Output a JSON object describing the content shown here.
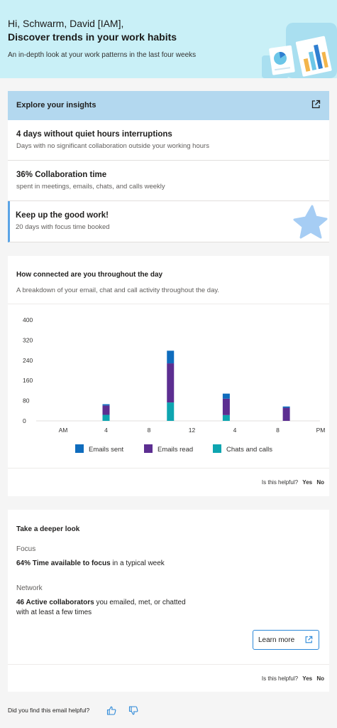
{
  "hero": {
    "greeting": "Hi, Schwarm, David [IAM],",
    "headline": "Discover trends in your work habits",
    "subtitle": "An in-depth look at your work patterns in the last four weeks"
  },
  "insights": {
    "header": "Explore your insights",
    "items": [
      {
        "title": "4 days without quiet hours interruptions",
        "detail": "Days with no significant collaboration outside your working hours"
      },
      {
        "title": "36% Collaboration time",
        "detail": "spent in meetings, emails, chats, and calls weekly"
      },
      {
        "title": "Keep up the good work!",
        "detail": "20 days with focus time booked"
      }
    ]
  },
  "connected": {
    "title": "How connected are you throughout the day",
    "description": "A breakdown of your email, chat and call activity throughout the day.",
    "helpful_question": "Is this helpful?",
    "yes": "Yes",
    "no": "No"
  },
  "chart_data": {
    "type": "bar",
    "stacked": true,
    "categories": [
      "AM",
      "4",
      "8",
      "12",
      "4",
      "8",
      "PM"
    ],
    "tick_labels": [
      "AM",
      "4",
      "8",
      "12",
      "4",
      "8",
      "PM"
    ],
    "y_ticks": [
      0,
      80,
      160,
      240,
      320,
      400
    ],
    "ylim": [
      0,
      400
    ],
    "bars": [
      {
        "at": 1,
        "values": [
          5,
          37,
          24
        ]
      },
      {
        "at": 2.5,
        "values": [
          50,
          155,
          73
        ]
      },
      {
        "at": 3.8,
        "values": [
          20,
          65,
          23
        ]
      },
      {
        "at": 5.2,
        "values": [
          5,
          52,
          0
        ]
      }
    ],
    "series": [
      {
        "name": "Emails sent",
        "color": "#0f6cbd"
      },
      {
        "name": "Emails read",
        "color": "#5c2e91"
      },
      {
        "name": "Chats and calls",
        "color": "#0ea5b0"
      }
    ],
    "legend": "bottom"
  },
  "deeper": {
    "title": "Take a deeper look",
    "focus_label": "Focus",
    "focus_stat": "64% Time available to focus",
    "focus_suffix": " in a typical week",
    "network_label": "Network",
    "network_stat": "46 Active collaborators",
    "network_suffix_1": " you emailed, met, or chatted",
    "network_suffix_2": "with at least a few times",
    "learn_more": "Learn more",
    "helpful_question": "Is this helpful?",
    "yes": "Yes",
    "no": "No"
  },
  "footer": {
    "question": "Did you find this email helpful?"
  },
  "colors": {
    "hero_bg": "#c9f0f7",
    "explore_header_bg": "#b3d8ef",
    "accent_border": "#5ba4e6",
    "button_border": "#2b88d8"
  }
}
